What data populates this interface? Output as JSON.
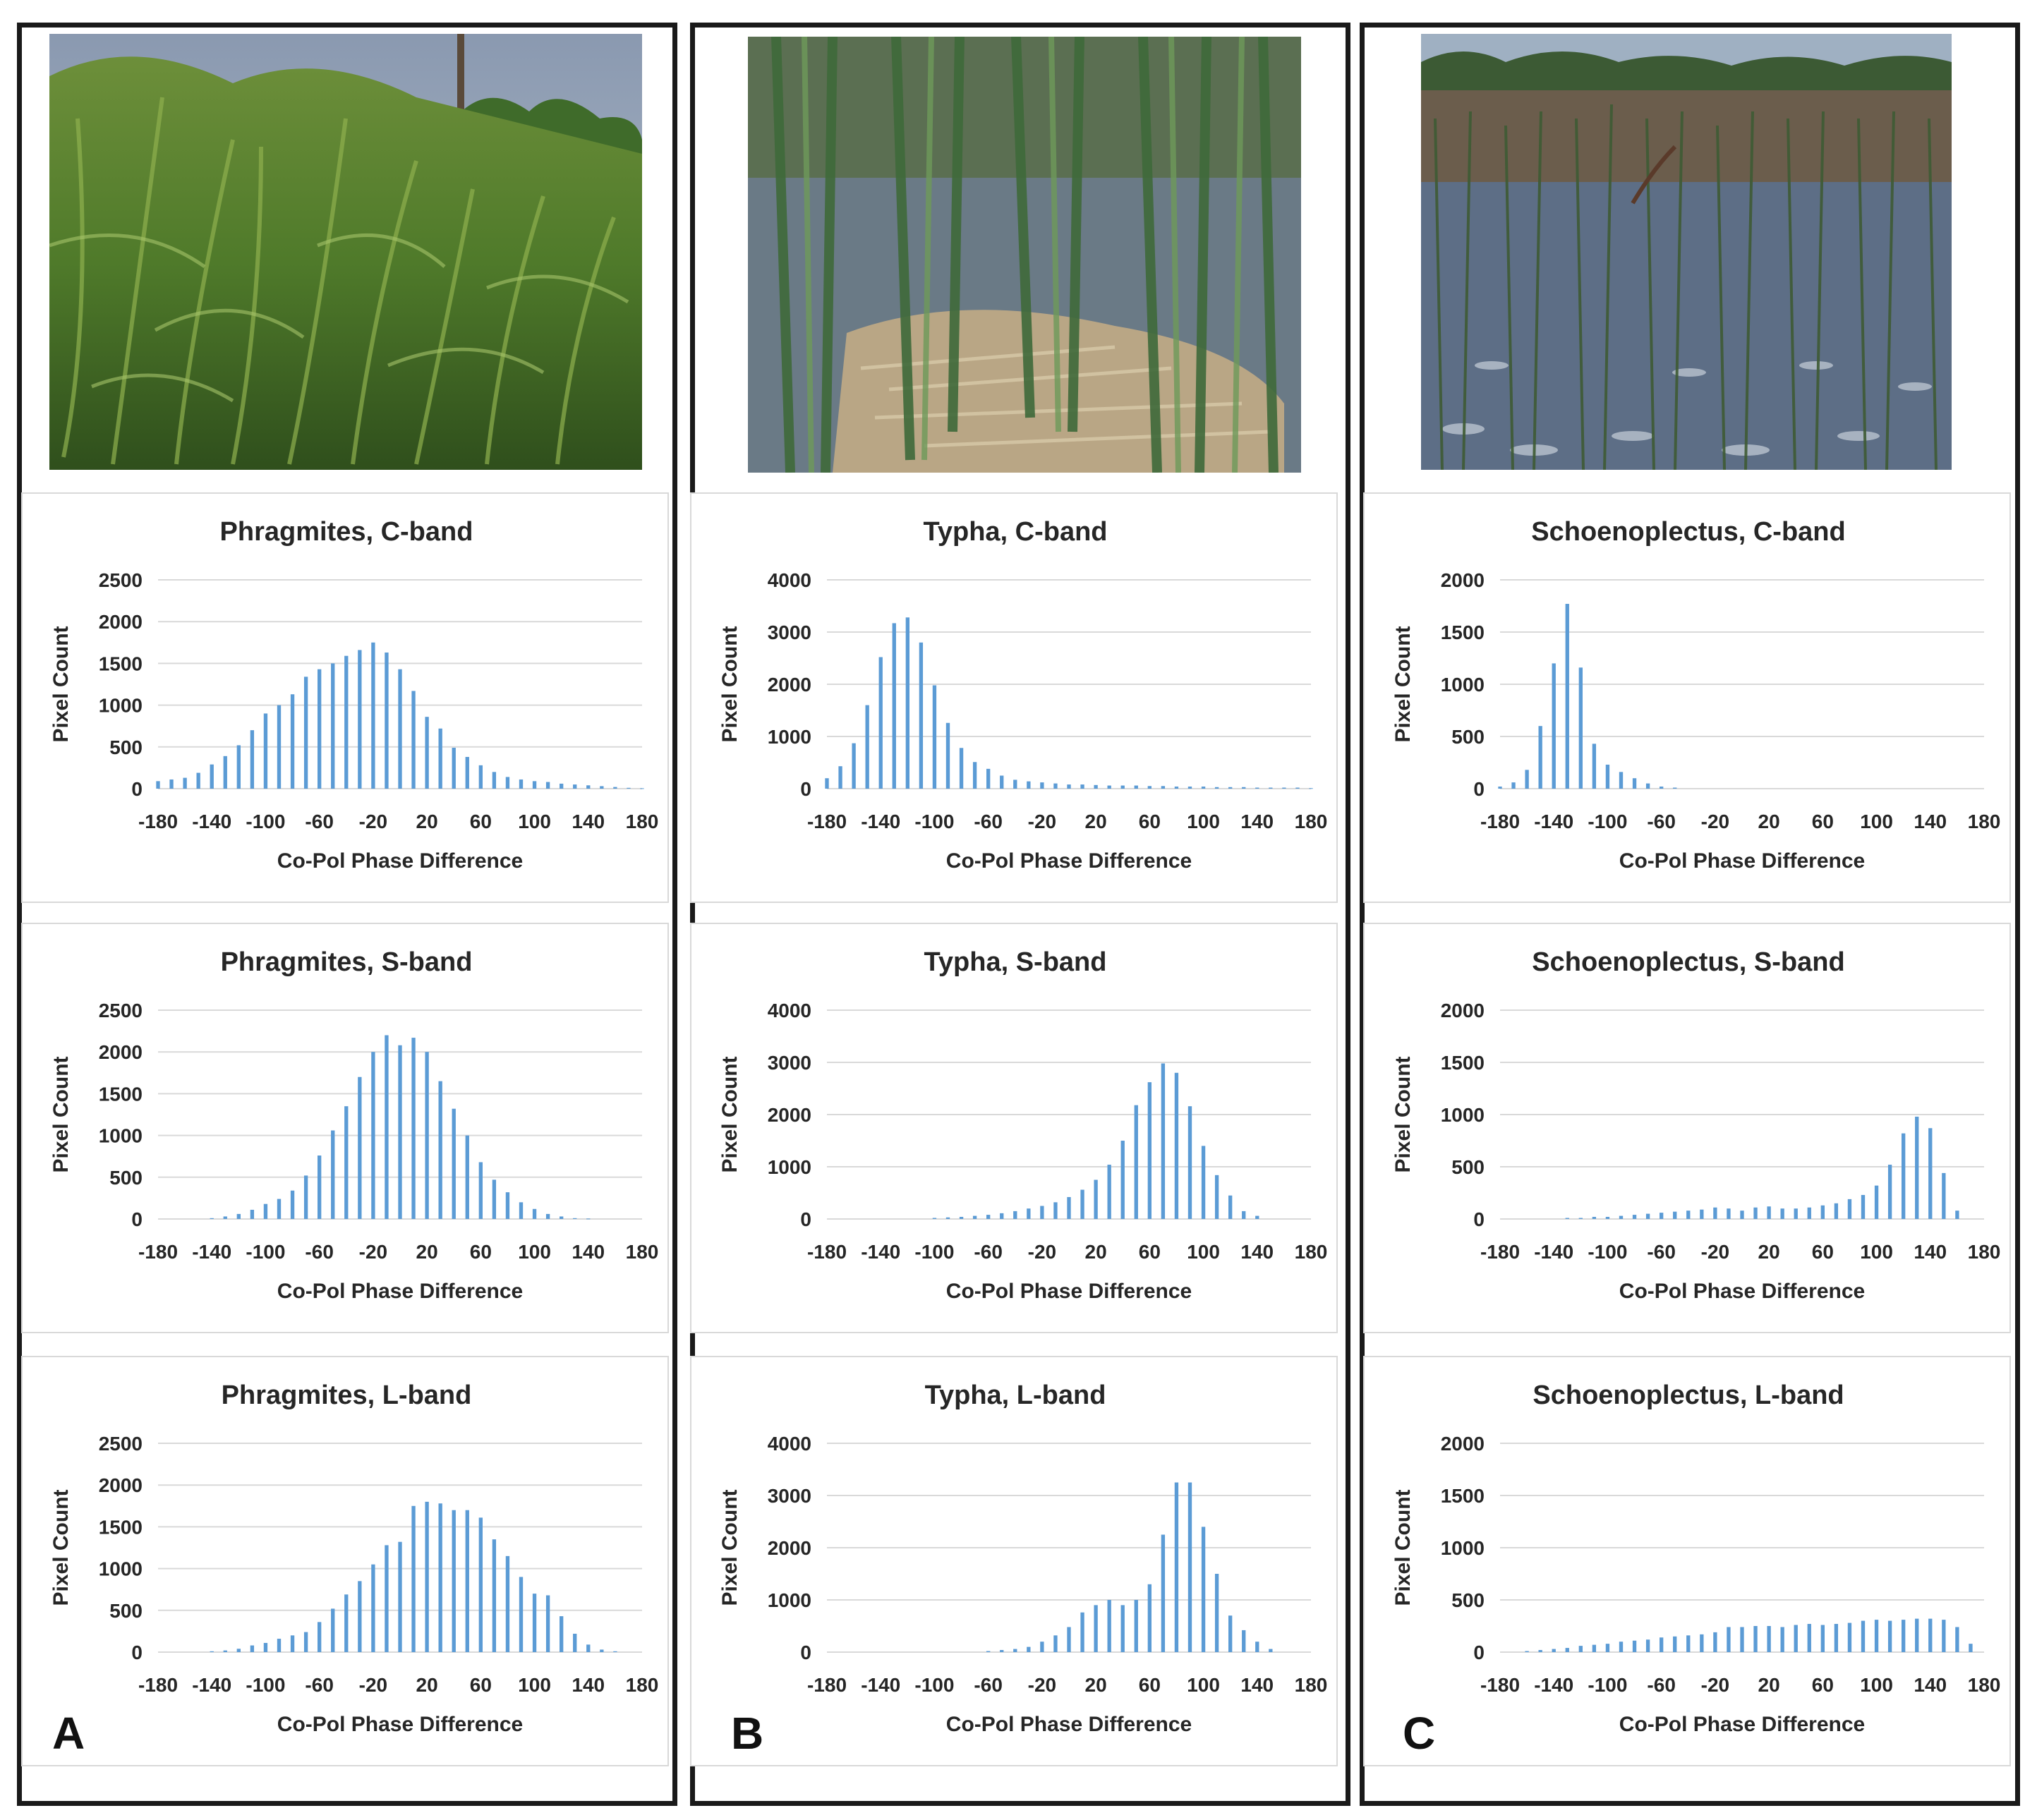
{
  "colors": {
    "bar": "#5b9bd5",
    "grid": "#d9d9d9",
    "text": "#262626",
    "border": "#1a1a1a"
  },
  "panels": [
    {
      "letter": "A",
      "photo": "phragmites-stand-photo"
    },
    {
      "letter": "B",
      "photo": "typha-stand-photo"
    },
    {
      "letter": "C",
      "photo": "schoenoplectus-stand-photo"
    }
  ],
  "chart_data": [
    {
      "type": "bar",
      "title": "Phragmites, C-band",
      "xlabel": "Co-Pol Phase Difference",
      "ylabel": "Pixel Count",
      "ylim": [
        0,
        2500
      ],
      "yticks": [
        0,
        500,
        1000,
        1500,
        2000,
        2500
      ],
      "xticks": [
        -180,
        -140,
        -100,
        -60,
        -20,
        20,
        60,
        100,
        140,
        180
      ],
      "x": [
        -180,
        -170,
        -160,
        -150,
        -140,
        -130,
        -120,
        -110,
        -100,
        -90,
        -80,
        -70,
        -60,
        -50,
        -40,
        -30,
        -20,
        -10,
        0,
        10,
        20,
        30,
        40,
        50,
        60,
        70,
        80,
        90,
        100,
        110,
        120,
        130,
        140,
        150,
        160,
        170,
        180
      ],
      "values": [
        90,
        110,
        130,
        190,
        290,
        390,
        520,
        700,
        900,
        1000,
        1130,
        1340,
        1430,
        1500,
        1590,
        1660,
        1750,
        1630,
        1430,
        1170,
        860,
        720,
        490,
        380,
        280,
        200,
        140,
        110,
        90,
        80,
        60,
        50,
        40,
        30,
        20,
        10,
        5
      ],
      "grid": true
    },
    {
      "type": "bar",
      "title": "Phragmites, S-band",
      "xlabel": "Co-Pol Phase Difference",
      "ylabel": "Pixel Count",
      "ylim": [
        0,
        2500
      ],
      "yticks": [
        0,
        500,
        1000,
        1500,
        2000,
        2500
      ],
      "xticks": [
        -180,
        -140,
        -100,
        -60,
        -20,
        20,
        60,
        100,
        140,
        180
      ],
      "x": [
        -180,
        -170,
        -160,
        -150,
        -140,
        -130,
        -120,
        -110,
        -100,
        -90,
        -80,
        -70,
        -60,
        -50,
        -40,
        -30,
        -20,
        -10,
        0,
        10,
        20,
        30,
        40,
        50,
        60,
        70,
        80,
        90,
        100,
        110,
        120,
        130,
        140,
        150,
        160,
        170,
        180
      ],
      "values": [
        0,
        0,
        0,
        0,
        10,
        30,
        60,
        110,
        180,
        240,
        340,
        520,
        760,
        1060,
        1350,
        1700,
        2000,
        2200,
        2080,
        2170,
        2000,
        1650,
        1320,
        1000,
        680,
        470,
        320,
        200,
        120,
        60,
        30,
        10,
        5,
        0,
        0,
        0,
        0
      ],
      "grid": true
    },
    {
      "type": "bar",
      "title": "Phragmites, L-band",
      "xlabel": "Co-Pol Phase Difference",
      "ylabel": "Pixel Count",
      "ylim": [
        0,
        2500
      ],
      "yticks": [
        0,
        500,
        1000,
        1500,
        2000,
        2500
      ],
      "xticks": [
        -180,
        -140,
        -100,
        -60,
        -20,
        20,
        60,
        100,
        140,
        180
      ],
      "x": [
        -180,
        -170,
        -160,
        -150,
        -140,
        -130,
        -120,
        -110,
        -100,
        -90,
        -80,
        -70,
        -60,
        -50,
        -40,
        -30,
        -20,
        -10,
        0,
        10,
        20,
        30,
        40,
        50,
        60,
        70,
        80,
        90,
        100,
        110,
        120,
        130,
        140,
        150,
        160,
        170,
        180
      ],
      "values": [
        0,
        0,
        0,
        0,
        10,
        20,
        40,
        80,
        110,
        160,
        200,
        240,
        360,
        520,
        690,
        850,
        1050,
        1280,
        1320,
        1750,
        1800,
        1780,
        1700,
        1700,
        1610,
        1350,
        1150,
        900,
        700,
        680,
        430,
        220,
        90,
        30,
        10,
        0,
        0
      ],
      "grid": true
    },
    {
      "type": "bar",
      "title": "Typha, C-band",
      "xlabel": "Co-Pol Phase Difference",
      "ylabel": "Pixel Count",
      "ylim": [
        0,
        4000
      ],
      "yticks": [
        0,
        1000,
        2000,
        3000,
        4000
      ],
      "xticks": [
        -180,
        -140,
        -100,
        -60,
        -20,
        20,
        60,
        100,
        140,
        180
      ],
      "x": [
        -180,
        -170,
        -160,
        -150,
        -140,
        -130,
        -120,
        -110,
        -100,
        -90,
        -80,
        -70,
        -60,
        -50,
        -40,
        -30,
        -20,
        -10,
        0,
        10,
        20,
        30,
        40,
        50,
        60,
        70,
        80,
        90,
        100,
        110,
        120,
        130,
        140,
        150,
        160,
        170,
        180
      ],
      "values": [
        200,
        430,
        870,
        1600,
        2520,
        3170,
        3280,
        2800,
        1980,
        1260,
        780,
        510,
        380,
        250,
        170,
        140,
        120,
        100,
        80,
        80,
        70,
        60,
        60,
        60,
        50,
        50,
        40,
        40,
        40,
        30,
        30,
        30,
        20,
        20,
        20,
        20,
        10
      ],
      "grid": true
    },
    {
      "type": "bar",
      "title": "Typha, S-band",
      "xlabel": "Co-Pol Phase Difference",
      "ylabel": "Pixel Count",
      "ylim": [
        0,
        4000
      ],
      "yticks": [
        0,
        1000,
        2000,
        3000,
        4000
      ],
      "xticks": [
        -180,
        -140,
        -100,
        -60,
        -20,
        20,
        60,
        100,
        140,
        180
      ],
      "x": [
        -180,
        -170,
        -160,
        -150,
        -140,
        -130,
        -120,
        -110,
        -100,
        -90,
        -80,
        -70,
        -60,
        -50,
        -40,
        -30,
        -20,
        -10,
        0,
        10,
        20,
        30,
        40,
        50,
        60,
        70,
        80,
        90,
        100,
        110,
        120,
        130,
        140,
        150,
        160,
        170,
        180
      ],
      "values": [
        0,
        0,
        0,
        0,
        0,
        0,
        0,
        0,
        20,
        30,
        40,
        60,
        80,
        110,
        150,
        200,
        250,
        320,
        420,
        560,
        750,
        1040,
        1500,
        2180,
        2620,
        2980,
        2800,
        2160,
        1400,
        840,
        450,
        150,
        60,
        0,
        0,
        0,
        0
      ],
      "grid": true
    },
    {
      "type": "bar",
      "title": "Typha, L-band",
      "xlabel": "Co-Pol Phase Difference",
      "ylabel": "Pixel Count",
      "ylim": [
        0,
        4000
      ],
      "yticks": [
        0,
        1000,
        2000,
        3000,
        4000
      ],
      "xticks": [
        -180,
        -140,
        -100,
        -60,
        -20,
        20,
        60,
        100,
        140,
        180
      ],
      "x": [
        -180,
        -170,
        -160,
        -150,
        -140,
        -130,
        -120,
        -110,
        -100,
        -90,
        -80,
        -70,
        -60,
        -50,
        -40,
        -30,
        -20,
        -10,
        0,
        10,
        20,
        30,
        40,
        50,
        60,
        70,
        80,
        90,
        100,
        110,
        120,
        130,
        140,
        150,
        160,
        170,
        180
      ],
      "values": [
        0,
        0,
        0,
        0,
        0,
        0,
        0,
        0,
        0,
        0,
        0,
        0,
        20,
        40,
        60,
        100,
        200,
        320,
        480,
        760,
        900,
        1000,
        900,
        1000,
        1300,
        2250,
        3250,
        3250,
        2400,
        1500,
        700,
        420,
        200,
        60,
        0,
        0,
        0
      ],
      "grid": true
    },
    {
      "type": "bar",
      "title": "Schoenoplectus, C-band",
      "xlabel": "Co-Pol Phase Difference",
      "ylabel": "Pixel Count",
      "ylim": [
        0,
        2000
      ],
      "yticks": [
        0,
        500,
        1000,
        1500,
        2000
      ],
      "xticks": [
        -180,
        -140,
        -100,
        -60,
        -20,
        20,
        60,
        100,
        140,
        180
      ],
      "x": [
        -180,
        -170,
        -160,
        -150,
        -140,
        -130,
        -120,
        -110,
        -100,
        -90,
        -80,
        -70,
        -60,
        -50,
        -40,
        -30,
        -20,
        -10,
        0,
        10,
        20,
        30,
        40,
        50,
        60,
        70,
        80,
        90,
        100,
        110,
        120,
        130,
        140,
        150,
        160,
        170,
        180
      ],
      "values": [
        20,
        60,
        180,
        600,
        1200,
        1770,
        1160,
        430,
        230,
        160,
        100,
        50,
        20,
        10,
        0,
        0,
        0,
        0,
        0,
        0,
        0,
        0,
        0,
        0,
        0,
        0,
        0,
        0,
        0,
        0,
        0,
        0,
        0,
        0,
        0,
        0,
        0
      ],
      "grid": true
    },
    {
      "type": "bar",
      "title": "Schoenoplectus, S-band",
      "xlabel": "Co-Pol Phase Difference",
      "ylabel": "Pixel Count",
      "ylim": [
        0,
        2000
      ],
      "yticks": [
        0,
        500,
        1000,
        1500,
        2000
      ],
      "xticks": [
        -180,
        -140,
        -100,
        -60,
        -20,
        20,
        60,
        100,
        140,
        180
      ],
      "x": [
        -180,
        -170,
        -160,
        -150,
        -140,
        -130,
        -120,
        -110,
        -100,
        -90,
        -80,
        -70,
        -60,
        -50,
        -40,
        -30,
        -20,
        -10,
        0,
        10,
        20,
        30,
        40,
        50,
        60,
        70,
        80,
        90,
        100,
        110,
        120,
        130,
        140,
        150,
        160,
        170,
        180
      ],
      "values": [
        0,
        0,
        0,
        0,
        0,
        10,
        10,
        20,
        20,
        30,
        40,
        50,
        60,
        70,
        80,
        90,
        110,
        100,
        80,
        110,
        120,
        100,
        100,
        110,
        130,
        150,
        190,
        230,
        320,
        520,
        820,
        980,
        870,
        440,
        80,
        0,
        0
      ],
      "grid": true
    },
    {
      "type": "bar",
      "title": "Schoenoplectus, L-band",
      "xlabel": "Co-Pol Phase Difference",
      "ylabel": "Pixel Count",
      "ylim": [
        0,
        2000
      ],
      "yticks": [
        0,
        500,
        1000,
        1500,
        2000
      ],
      "xticks": [
        -180,
        -140,
        -100,
        -60,
        -20,
        20,
        60,
        100,
        140,
        180
      ],
      "x": [
        -180,
        -170,
        -160,
        -150,
        -140,
        -130,
        -120,
        -110,
        -100,
        -90,
        -80,
        -70,
        -60,
        -50,
        -40,
        -30,
        -20,
        -10,
        0,
        10,
        20,
        30,
        40,
        50,
        60,
        70,
        80,
        90,
        100,
        110,
        120,
        130,
        140,
        150,
        160,
        170,
        180
      ],
      "values": [
        0,
        0,
        10,
        20,
        30,
        40,
        60,
        70,
        80,
        100,
        110,
        120,
        140,
        150,
        160,
        170,
        190,
        240,
        240,
        250,
        250,
        240,
        260,
        270,
        260,
        270,
        280,
        300,
        310,
        300,
        310,
        320,
        320,
        310,
        240,
        80,
        0
      ],
      "grid": true
    }
  ]
}
